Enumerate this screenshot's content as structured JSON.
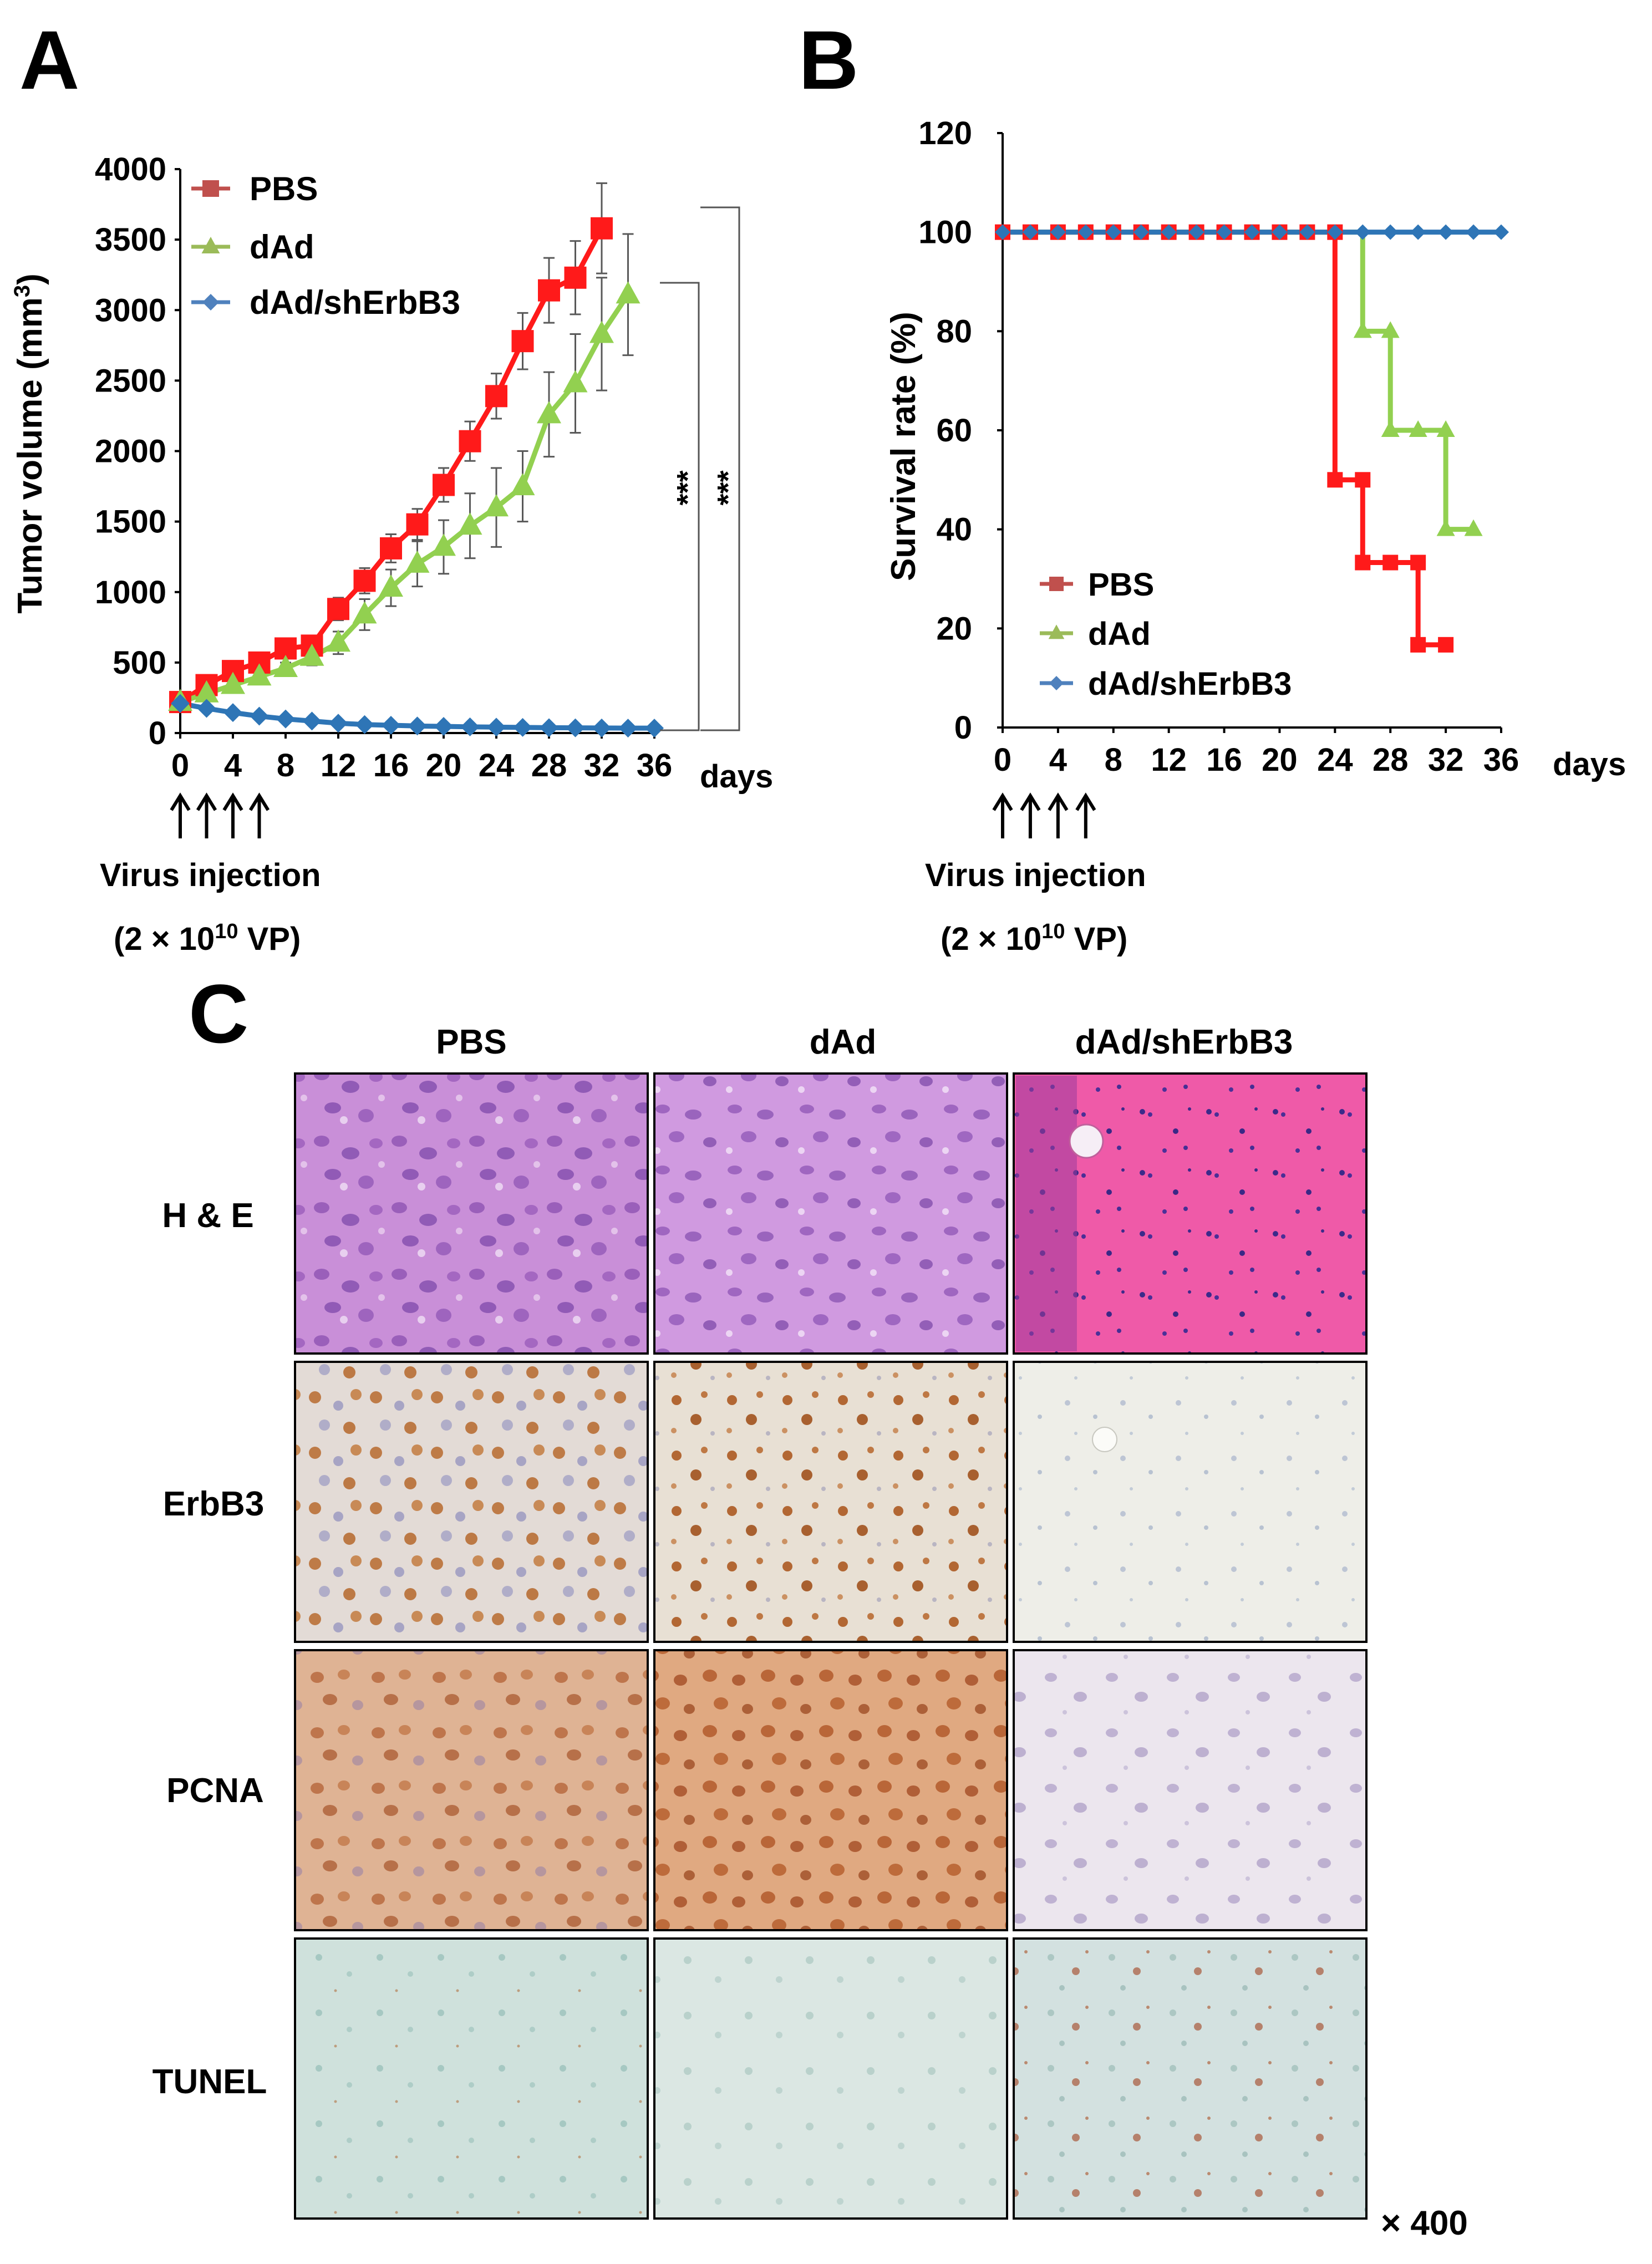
{
  "panel_labels": {
    "a": "A",
    "b": "B",
    "c": "C"
  },
  "colors": {
    "pbs": "#ff1a1a",
    "pbs_legend": "#c0504d",
    "dad": "#92d050",
    "dad_legend": "#9bbb59",
    "shErbB3": "#2e75b6",
    "shErbB3_legend": "#4f81bd",
    "error": "#595959",
    "axis": "#000000"
  },
  "chart_data": [
    {
      "type": "line",
      "panel": "A",
      "ylabel_main": "Tumor volume (mm",
      "ylabel_sup": "3",
      "ylabel_end": ")",
      "xlabel": "days",
      "ylim": [
        0,
        4000
      ],
      "xlim": [
        0,
        36
      ],
      "yticks": [
        0,
        500,
        1000,
        1500,
        2000,
        2500,
        3000,
        3500,
        4000
      ],
      "xticks": [
        0,
        4,
        8,
        12,
        16,
        20,
        24,
        28,
        32,
        36
      ],
      "legend_position": "top-left",
      "series": [
        {
          "name": "PBS",
          "marker": "square",
          "color_key": "pbs",
          "x": [
            0,
            2,
            4,
            6,
            8,
            10,
            12,
            14,
            16,
            18,
            20,
            22,
            24,
            26,
            28,
            30,
            32
          ],
          "y": [
            220,
            340,
            440,
            500,
            600,
            620,
            880,
            1080,
            1310,
            1480,
            1760,
            2070,
            2390,
            2780,
            3140,
            3230,
            3580
          ],
          "err": [
            20,
            30,
            40,
            40,
            50,
            50,
            80,
            90,
            100,
            110,
            120,
            140,
            160,
            200,
            230,
            260,
            320
          ]
        },
        {
          "name": "dAd",
          "marker": "triangle",
          "color_key": "dad",
          "x": [
            0,
            2,
            4,
            6,
            8,
            10,
            12,
            14,
            16,
            18,
            20,
            22,
            24,
            26,
            28,
            30,
            32,
            34
          ],
          "y": [
            220,
            280,
            340,
            400,
            460,
            540,
            640,
            840,
            1030,
            1200,
            1320,
            1470,
            1600,
            1750,
            2260,
            2480,
            2830,
            3110
          ],
          "err": [
            20,
            30,
            30,
            40,
            40,
            60,
            80,
            110,
            130,
            160,
            190,
            230,
            280,
            250,
            300,
            350,
            400,
            430
          ]
        },
        {
          "name": "dAd/shErbB3",
          "marker": "diamond",
          "color_key": "shErbB3",
          "x": [
            0,
            2,
            4,
            6,
            8,
            10,
            12,
            14,
            16,
            18,
            20,
            22,
            24,
            26,
            28,
            30,
            32,
            34,
            36
          ],
          "y": [
            210,
            175,
            145,
            120,
            100,
            85,
            70,
            60,
            55,
            50,
            47,
            44,
            42,
            40,
            38,
            37,
            36,
            35,
            35
          ],
          "err": [
            0,
            10,
            10,
            8,
            8,
            6,
            6,
            5,
            5,
            5,
            5,
            4,
            4,
            4,
            4,
            4,
            4,
            4,
            4
          ]
        }
      ],
      "significance": [
        {
          "label": "***",
          "from": "dAd",
          "to": "dAd/shErbB3"
        },
        {
          "label": "***",
          "from": "PBS",
          "to": "dAd/shErbB3"
        }
      ],
      "injection_days": [
        0,
        2,
        4,
        6
      ],
      "injection_label": "Virus injection",
      "dose_pre": "(2 × 10",
      "dose_sup": "10",
      "dose_post": " VP)"
    },
    {
      "type": "line",
      "panel": "B",
      "ylabel": "Survival rate (%)",
      "xlabel": "days",
      "ylim": [
        0,
        120
      ],
      "xlim": [
        0,
        36
      ],
      "yticks": [
        0,
        20,
        40,
        60,
        80,
        100,
        120
      ],
      "xticks": [
        0,
        4,
        8,
        12,
        16,
        20,
        24,
        28,
        32,
        36
      ],
      "legend_position": "bottom-left",
      "series": [
        {
          "name": "PBS",
          "marker": "square",
          "color_key": "pbs",
          "x": [
            0,
            24,
            24,
            26,
            26,
            30,
            30,
            32
          ],
          "y": [
            100,
            100,
            50,
            50,
            33.3,
            33.3,
            16.7,
            16.7
          ],
          "marker_x": [
            0,
            2,
            4,
            6,
            8,
            10,
            12,
            14,
            16,
            18,
            20,
            22,
            24,
            24,
            26,
            26,
            28,
            30,
            30,
            32
          ],
          "marker_y": [
            100,
            100,
            100,
            100,
            100,
            100,
            100,
            100,
            100,
            100,
            100,
            100,
            100,
            50,
            50,
            33.3,
            33.3,
            33.3,
            16.7,
            16.7
          ]
        },
        {
          "name": "dAd",
          "marker": "triangle",
          "color_key": "dad",
          "x": [
            0,
            26,
            26,
            28,
            28,
            32,
            32,
            34
          ],
          "y": [
            100,
            100,
            80,
            80,
            60,
            60,
            40,
            40
          ],
          "marker_x": [
            26,
            28,
            28,
            30,
            32,
            32,
            34
          ],
          "marker_y": [
            80,
            80,
            60,
            60,
            60,
            40,
            40
          ]
        },
        {
          "name": "dAd/shErbB3",
          "marker": "diamond",
          "color_key": "shErbB3",
          "x": [
            0,
            36
          ],
          "y": [
            100,
            100
          ],
          "marker_x": [
            0,
            2,
            4,
            6,
            8,
            10,
            12,
            14,
            16,
            18,
            20,
            22,
            24,
            26,
            28,
            30,
            32,
            34,
            36
          ],
          "marker_y": [
            100,
            100,
            100,
            100,
            100,
            100,
            100,
            100,
            100,
            100,
            100,
            100,
            100,
            100,
            100,
            100,
            100,
            100,
            100
          ]
        }
      ],
      "injection_days": [
        0,
        2,
        4,
        6
      ],
      "injection_label": "Virus injection",
      "dose_pre": "(2 × 10",
      "dose_sup": "10",
      "dose_post": " VP)"
    }
  ],
  "panel_c": {
    "columns": [
      "PBS",
      "dAd",
      "dAd/shErbB3"
    ],
    "rows": [
      "H & E",
      "ErbB3",
      "PCNA",
      "TUNEL"
    ],
    "magnification": "× 400"
  }
}
